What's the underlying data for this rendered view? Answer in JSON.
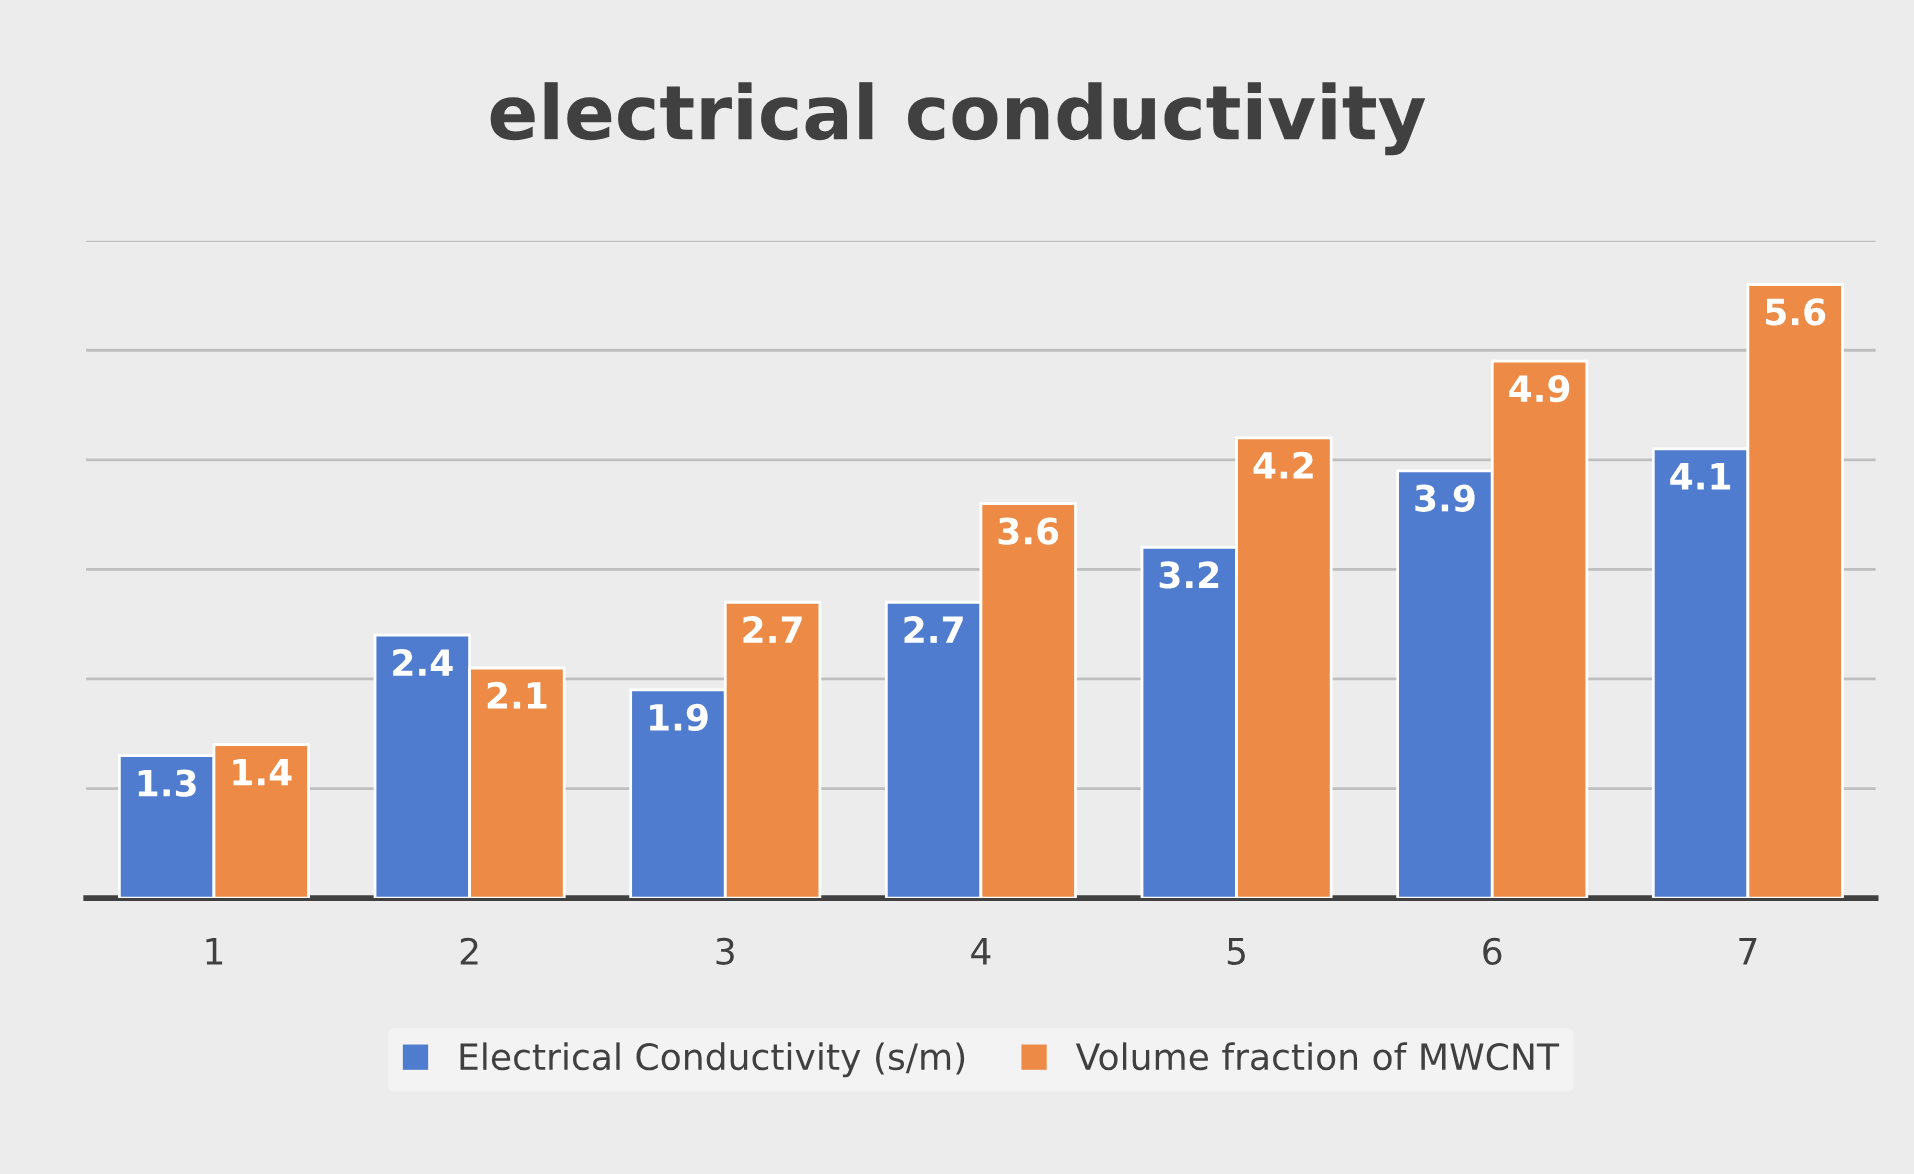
{
  "chart_data": {
    "type": "bar",
    "title": "electrical conductivity",
    "categories": [
      "1",
      "2",
      "3",
      "4",
      "5",
      "6",
      "7"
    ],
    "series": [
      {
        "name": "Electrical Conductivity (s/m)",
        "color": "#4f7ccf",
        "values": [
          1.3,
          2.4,
          1.9,
          2.7,
          3.2,
          3.9,
          4.1
        ]
      },
      {
        "name": "Volume fraction of MWCNT",
        "color": "#ed8a45",
        "values": [
          1.4,
          2.1,
          2.7,
          3.6,
          4.2,
          4.9,
          5.6
        ]
      }
    ],
    "ylim": [
      0,
      6
    ],
    "yticks": [
      {
        "value": 0,
        "label": null
      },
      {
        "value": 1,
        "label": null
      },
      {
        "value": 2,
        "label": null
      },
      {
        "value": 3,
        "label": null
      },
      {
        "value": 4,
        "label": null
      },
      {
        "value": 5,
        "label": null
      },
      {
        "value": 6,
        "label": null
      }
    ],
    "tick_labels": "x",
    "grid": "y",
    "legend": "bottom",
    "data_labels": true
  }
}
